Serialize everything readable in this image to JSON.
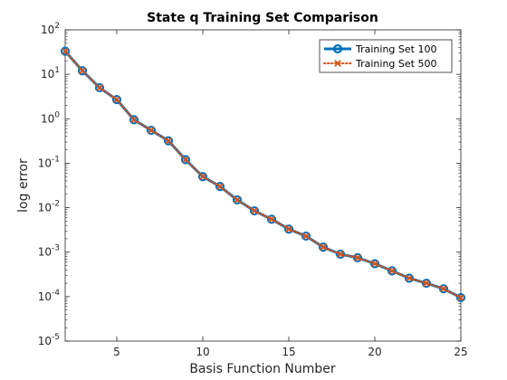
{
  "chart_data": {
    "type": "line",
    "title": "State q Training Set Comparison",
    "xlabel": "Basis Function Number",
    "ylabel": "log error",
    "xlim": [
      2,
      25
    ],
    "ylim": [
      1e-05,
      100
    ],
    "yscale": "log",
    "grid": false,
    "legend_position": "top-right",
    "x": [
      2,
      3,
      4,
      5,
      6,
      7,
      8,
      9,
      10,
      11,
      12,
      13,
      14,
      15,
      16,
      17,
      18,
      19,
      20,
      21,
      22,
      23,
      24,
      25
    ],
    "x_ticks": [
      {
        "value": 5,
        "label": "5"
      },
      {
        "value": 10,
        "label": "10"
      },
      {
        "value": 15,
        "label": "15"
      },
      {
        "value": 20,
        "label": "20"
      },
      {
        "value": 25,
        "label": "25"
      }
    ],
    "y_ticks": [
      {
        "value": 100,
        "base": "10",
        "exp": "2"
      },
      {
        "value": 10,
        "base": "10",
        "exp": "1"
      },
      {
        "value": 1,
        "base": "10",
        "exp": "0"
      },
      {
        "value": 0.1,
        "base": "10",
        "exp": "-1"
      },
      {
        "value": 0.01,
        "base": "10",
        "exp": "-2"
      },
      {
        "value": 0.001,
        "base": "10",
        "exp": "-3"
      },
      {
        "value": 0.0001,
        "base": "10",
        "exp": "-4"
      },
      {
        "value": 1e-05,
        "base": "10",
        "exp": "-5"
      }
    ],
    "series": [
      {
        "name": "Training Set 100",
        "color": "#0072BD",
        "marker": "circle",
        "line_style": "solid",
        "values": [
          33,
          12,
          5,
          2.7,
          0.95,
          0.55,
          0.32,
          0.12,
          0.05,
          0.03,
          0.015,
          0.0085,
          0.0055,
          0.0033,
          0.0023,
          0.0013,
          0.0009,
          0.00075,
          0.00055,
          0.00038,
          0.00026,
          0.0002,
          0.00015,
          9.5e-05
        ]
      },
      {
        "name": "Training Set 500",
        "color": "#D95319",
        "marker": "x",
        "line_style": "dotted",
        "values": [
          33,
          12,
          5,
          2.7,
          0.95,
          0.55,
          0.32,
          0.12,
          0.05,
          0.03,
          0.015,
          0.0085,
          0.0055,
          0.0033,
          0.0023,
          0.0013,
          0.0009,
          0.00075,
          0.00055,
          0.00038,
          0.00026,
          0.0002,
          0.00015,
          9.5e-05
        ]
      }
    ]
  }
}
